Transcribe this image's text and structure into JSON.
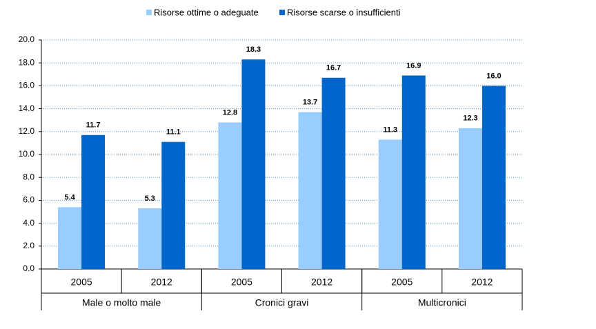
{
  "chart_data": {
    "type": "bar",
    "categories": [
      "2005",
      "2012",
      "2005",
      "2012",
      "2005",
      "2012"
    ],
    "groups": [
      "Male o molto male",
      "Cronici gravi",
      "Multicronici"
    ],
    "series": [
      {
        "name": "Risorse ottime o adeguate",
        "color": "#99ccff",
        "values": [
          5.4,
          5.3,
          12.8,
          13.7,
          11.3,
          12.3
        ],
        "value_labels": [
          "5.4",
          "5.3",
          "12.8",
          "13.7",
          "11.3",
          "12.3"
        ]
      },
      {
        "name": "Risorse scarse o insufficienti",
        "color": "#0066cc",
        "values": [
          11.7,
          11.1,
          18.3,
          16.7,
          16.9,
          16.0
        ],
        "value_labels": [
          "11.7",
          "11.1",
          "18.3",
          "16.7",
          "16.9",
          "16.0"
        ]
      }
    ],
    "ylim": [
      0,
      20
    ],
    "yticks": [
      {
        "value": 0,
        "label": "0.0"
      },
      {
        "value": 2,
        "label": "2.0"
      },
      {
        "value": 4,
        "label": "4.0"
      },
      {
        "value": 6,
        "label": "6.0"
      },
      {
        "value": 8,
        "label": "8.0"
      },
      {
        "value": 10,
        "label": "10.0"
      },
      {
        "value": 12,
        "label": "12.0"
      },
      {
        "value": 14,
        "label": "14.0"
      },
      {
        "value": 16,
        "label": "16.0"
      },
      {
        "value": 18,
        "label": "18.0"
      },
      {
        "value": 20,
        "label": "20.0"
      }
    ],
    "grid": true
  }
}
